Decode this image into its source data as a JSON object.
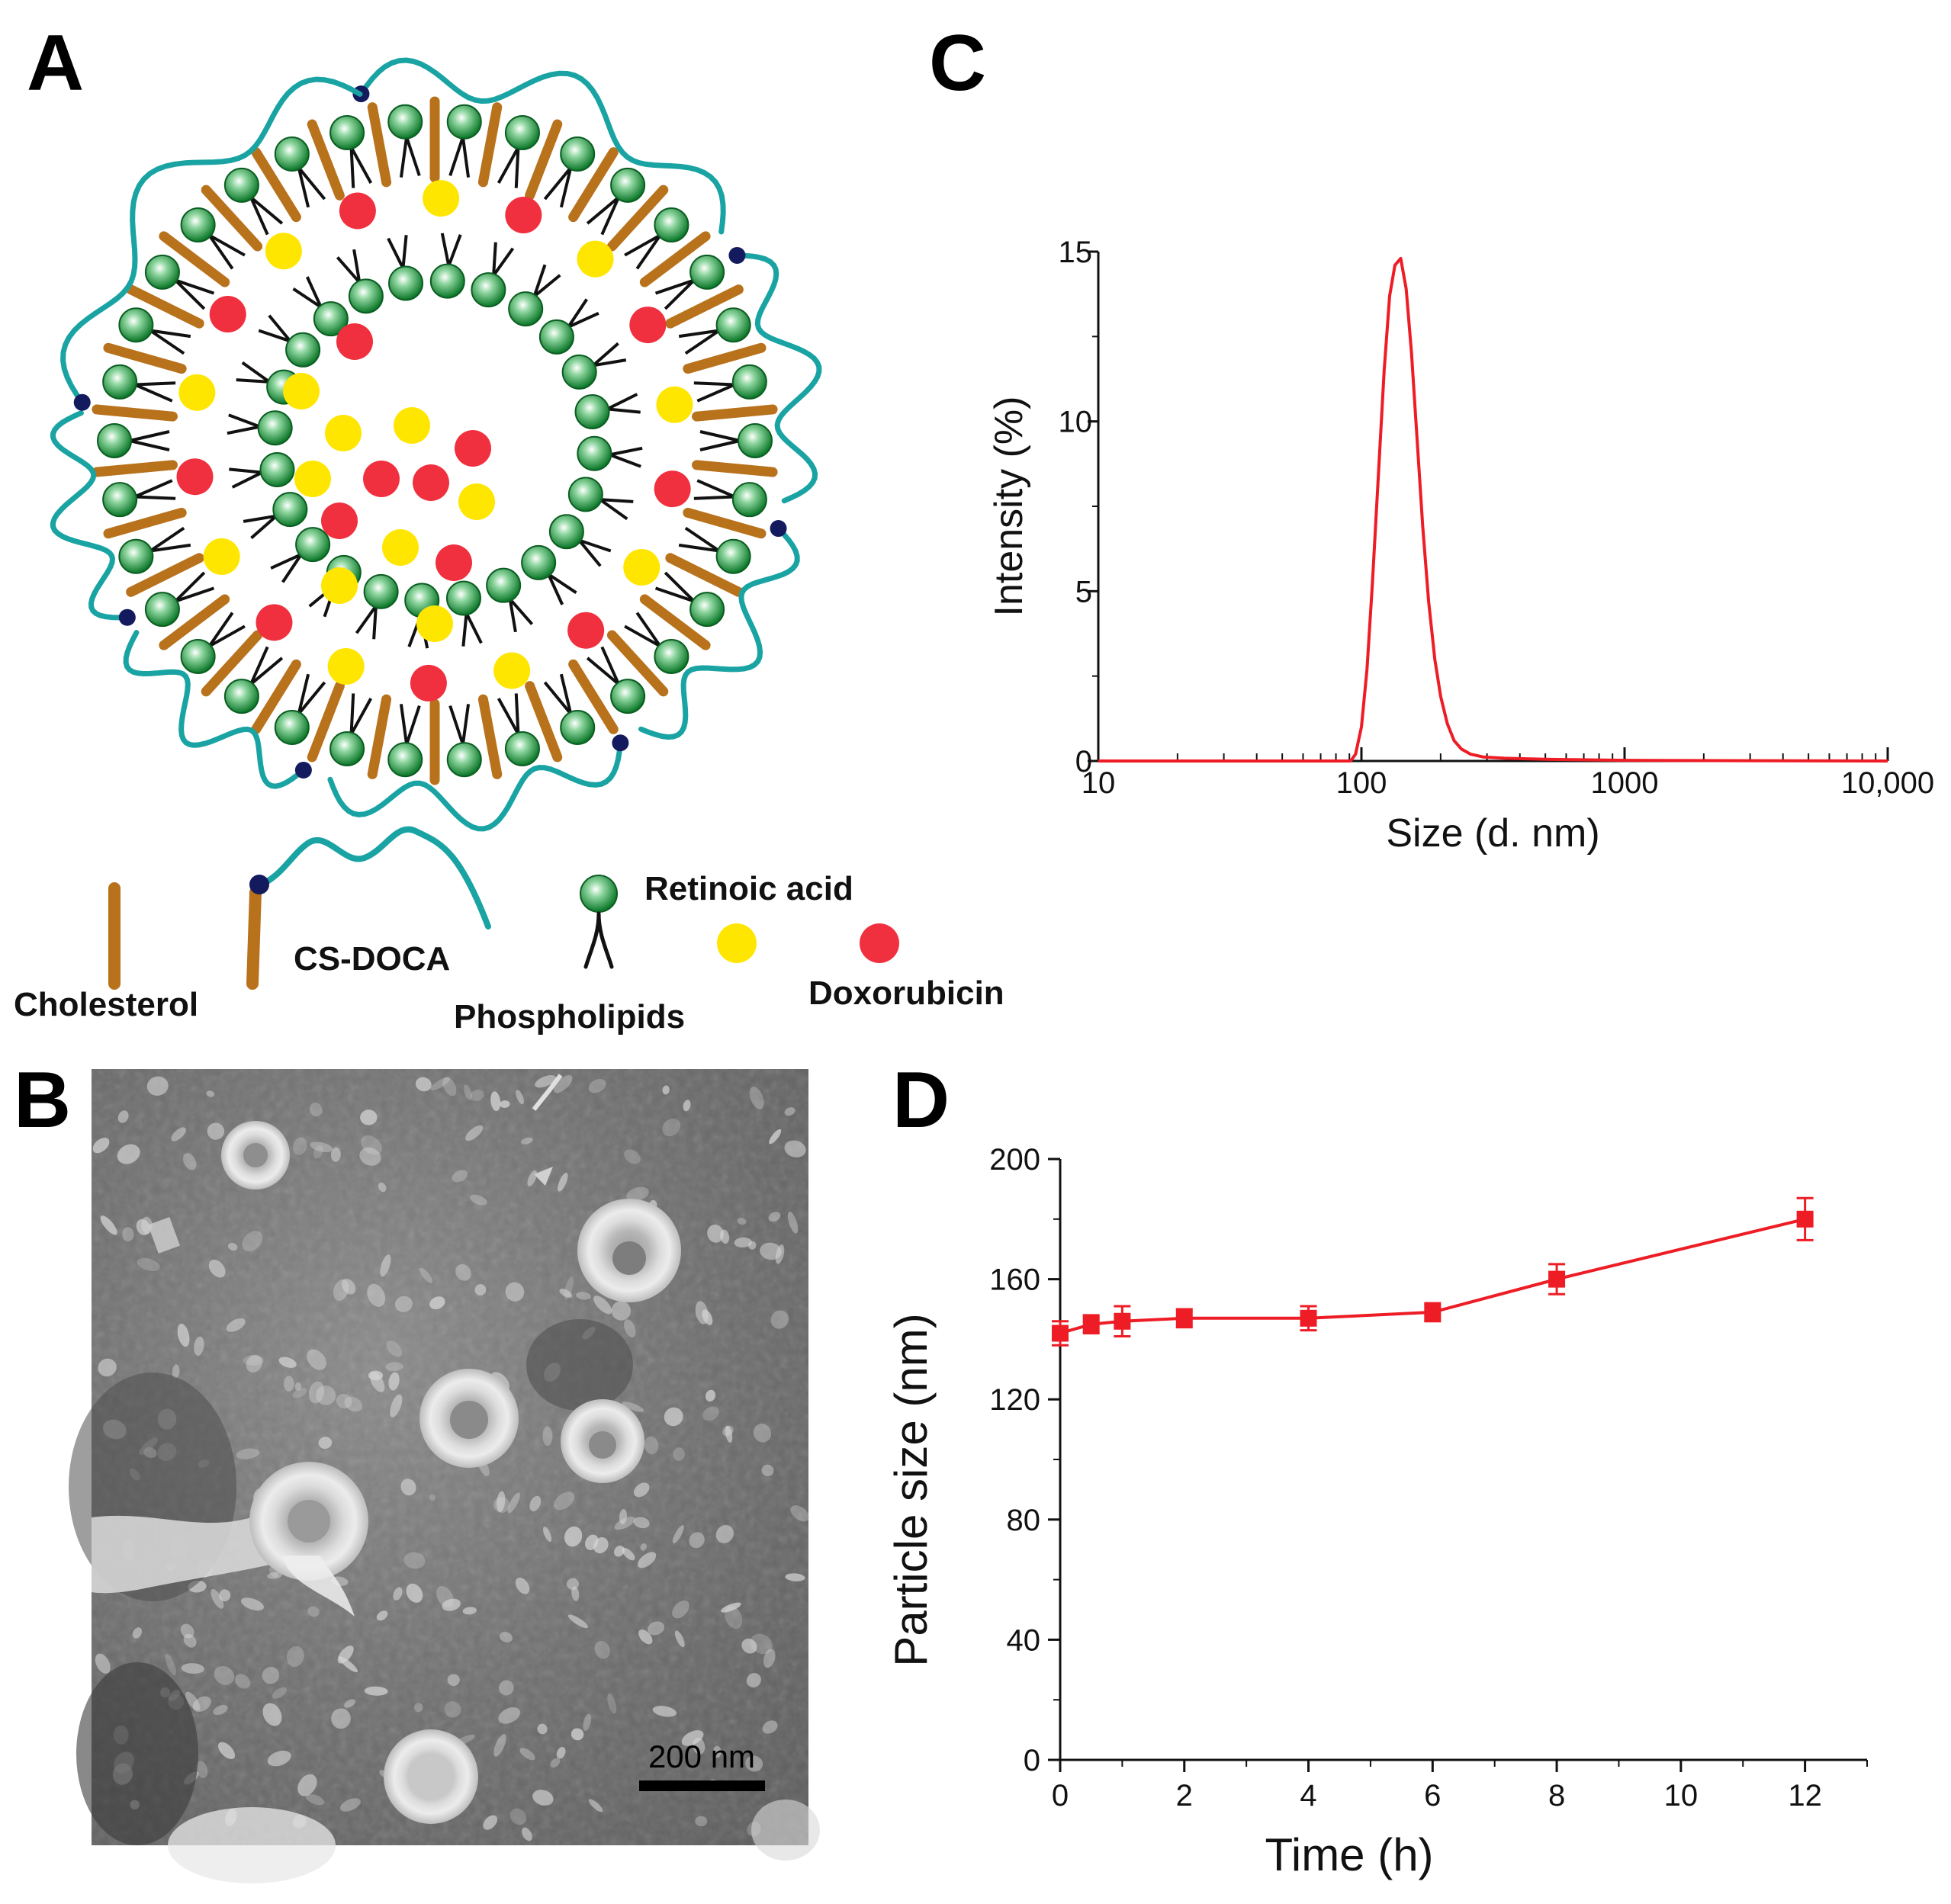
{
  "panels": {
    "A": "A",
    "B": "B",
    "C": "C",
    "D": "D"
  },
  "legend": {
    "cholesterol": "Cholesterol",
    "cs_doca": "CS-DOCA",
    "retinoic_acid": "Retinoic acid",
    "phospholipids": "Phospholipids",
    "doxorubicin": "Doxorubicin"
  },
  "colors": {
    "cholesterol": "#b8721c",
    "cs_doca": "#1aa3a3",
    "cs_doca_anchor": "#141a5e",
    "phospholipid_head": "#1a8f3a",
    "retinoic_acid": "#ffe600",
    "doxorubicin": "#f0303e",
    "curve": "#ee1c25"
  },
  "micrograph": {
    "scale_bar_label": "200 nm"
  },
  "chart_data": [
    {
      "type": "line",
      "panel": "C",
      "xlabel": "Size (d. nm)",
      "ylabel": "Intensity (%)",
      "x_scale": "log",
      "xlim": [
        10,
        10000
      ],
      "ylim": [
        0,
        15
      ],
      "x_ticks": [
        10,
        100,
        1000,
        10000
      ],
      "x_tick_labels": [
        "10",
        "100",
        "1000",
        "10,000"
      ],
      "y_ticks": [
        0,
        5,
        10,
        15
      ],
      "series": [
        {
          "x": [
            10,
            60,
            91,
            95,
            100,
            105,
            110,
            116,
            122,
            128,
            134,
            141,
            148,
            155,
            163,
            171,
            180,
            190,
            200,
            212,
            225,
            240,
            260,
            290,
            350,
            500,
            1000,
            3000,
            10000
          ],
          "y": [
            0,
            0,
            0,
            0.2,
            1.0,
            2.7,
            5.2,
            8.4,
            11.5,
            13.7,
            14.6,
            14.8,
            13.9,
            12.0,
            9.4,
            6.9,
            4.7,
            3.0,
            1.9,
            1.1,
            0.6,
            0.35,
            0.2,
            0.12,
            0.08,
            0.05,
            0.02,
            0.01,
            0
          ]
        }
      ]
    },
    {
      "type": "line",
      "panel": "D",
      "xlabel": "Time (h)",
      "ylabel": "Particle size (nm)",
      "xlim": [
        0,
        13
      ],
      "ylim": [
        0,
        200
      ],
      "x_ticks": [
        0,
        2,
        4,
        6,
        8,
        10,
        12
      ],
      "y_ticks": [
        0,
        40,
        80,
        120,
        160,
        200
      ],
      "series": [
        {
          "x": [
            0,
            0.5,
            1,
            2,
            4,
            6,
            8,
            12
          ],
          "y": [
            142,
            145,
            146,
            147,
            147,
            149,
            160,
            180
          ],
          "error": [
            4,
            3,
            5,
            3,
            4,
            3,
            5,
            7
          ]
        }
      ]
    }
  ]
}
